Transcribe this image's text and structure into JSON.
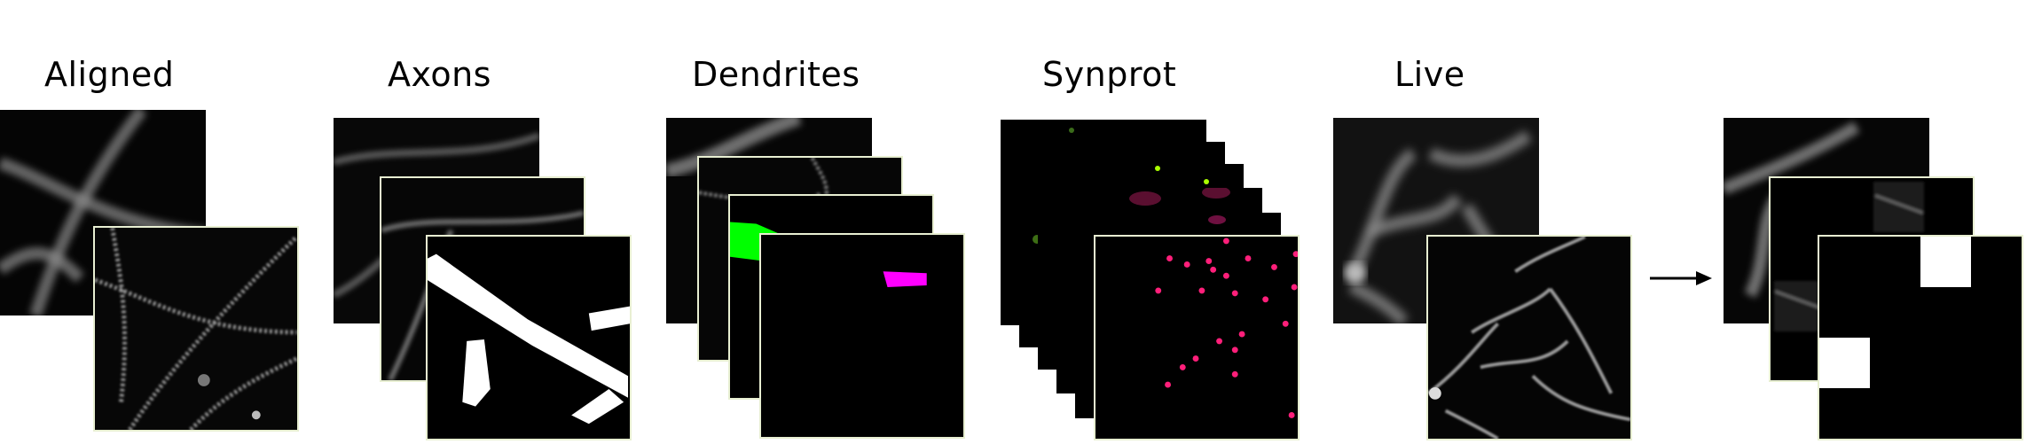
{
  "columns": [
    {
      "id": "aligned",
      "title": "Aligned"
    },
    {
      "id": "axons",
      "title": "Axons"
    },
    {
      "id": "dendrites",
      "title": "Dendrites"
    },
    {
      "id": "synprot",
      "title": "Synprot"
    },
    {
      "id": "live",
      "title": "Live"
    }
  ],
  "colors": {
    "frame": "#e8efd2",
    "dendrite_green": "#00ff00",
    "dendrite_magenta": "#ff00ff",
    "synprot_pink": "#ff1f7a",
    "background": "#000000",
    "mask": "#ffffff"
  },
  "icons": {
    "arrow": "right-arrow-icon"
  }
}
